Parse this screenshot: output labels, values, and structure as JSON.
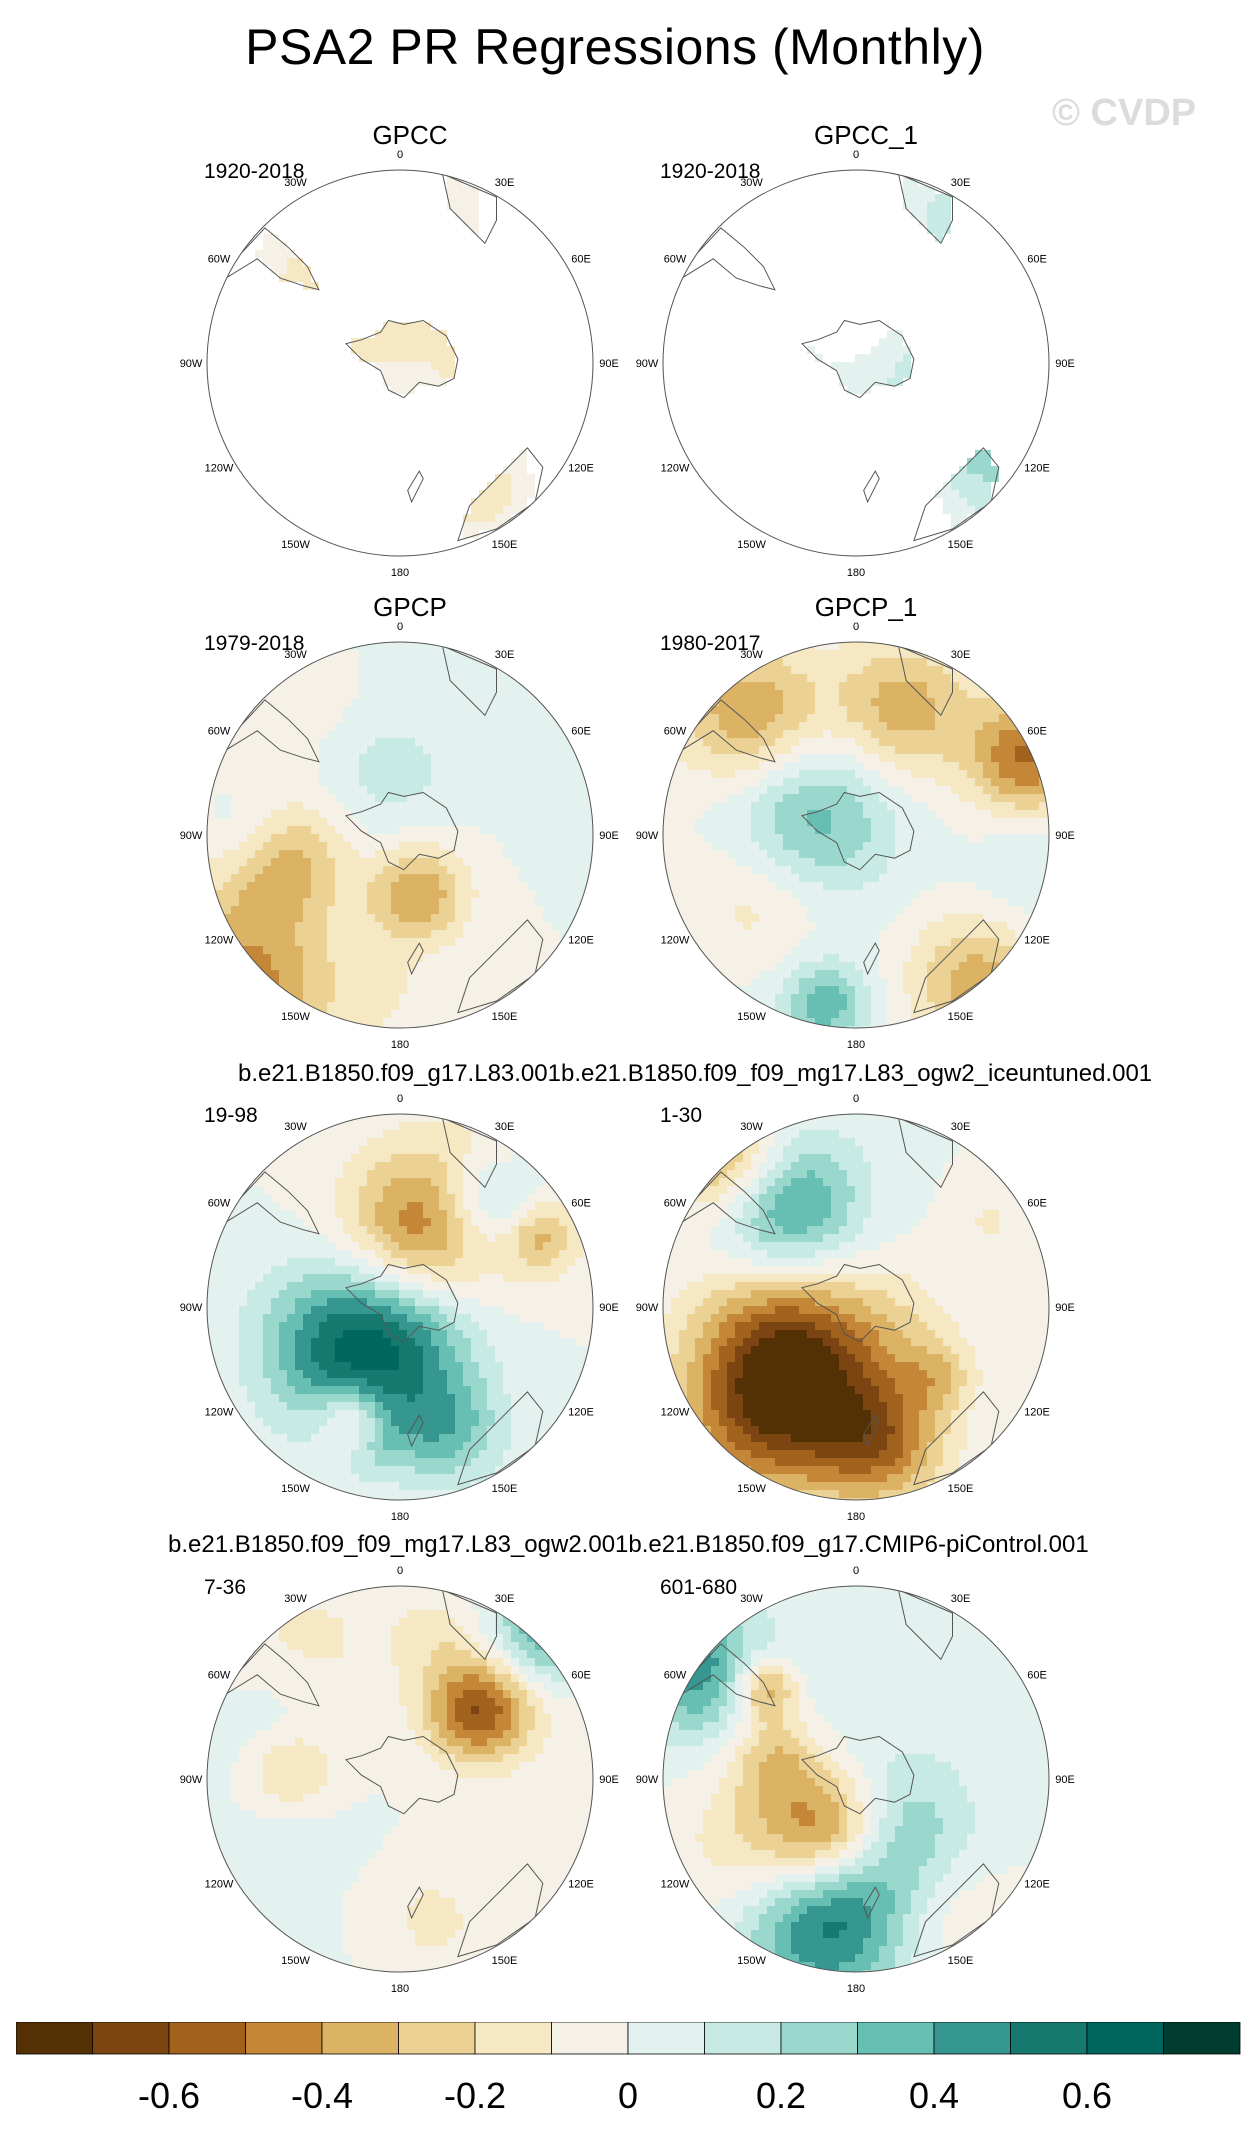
{
  "title": "PSA2 PR Regressions (Monthly)",
  "watermark": "© CVDP",
  "panels": [
    {
      "title": "GPCC",
      "period": "1920-2018",
      "coverage": "land",
      "seed": 3
    },
    {
      "title": "GPCC_1",
      "period": "1920-2018",
      "coverage": "land",
      "seed": 5
    },
    {
      "title": "GPCP",
      "period": "1979-2018",
      "coverage": "full",
      "seed": 7
    },
    {
      "title": "GPCP_1",
      "period": "1980-2017",
      "coverage": "full",
      "seed": 9
    },
    {
      "title": "",
      "period": "19-98",
      "coverage": "full",
      "seed": 11
    },
    {
      "title": "",
      "period": "1-30",
      "coverage": "full",
      "seed": 13
    },
    {
      "title": "",
      "period": "7-36",
      "coverage": "full",
      "seed": 17
    },
    {
      "title": "",
      "period": "601-680",
      "coverage": "full",
      "seed": 19
    }
  ],
  "row_titles": {
    "row3": "b.e21.B1850.f09_g17.L83.001b.e21.B1850.f09_f09_mg17.L83_ogw2_iceuntuned.001",
    "row4": "b.e21.B1850.f09_f09_mg17.L83_ogw2.001b.e21.B1850.f09_g17.CMIP6-piControl.001"
  },
  "longitude_ticks": [
    "0",
    "30E",
    "60E",
    "90E",
    "120E",
    "150E",
    "180",
    "150W",
    "120W",
    "90W",
    "60W",
    "30W"
  ],
  "colorbar": {
    "levels": [
      -0.8,
      -0.7,
      -0.6,
      -0.5,
      -0.4,
      -0.3,
      -0.2,
      -0.1,
      0,
      0.1,
      0.2,
      0.3,
      0.4,
      0.5,
      0.6,
      0.7,
      0.8
    ],
    "colors": [
      "#543005",
      "#7a4510",
      "#a0621c",
      "#c48637",
      "#dcb264",
      "#ebd193",
      "#f6e8c3",
      "#f5f1e6",
      "#e3f1ef",
      "#c7eae5",
      "#9ad8cd",
      "#67beb3",
      "#35978f",
      "#16796f",
      "#01665e",
      "#003c30"
    ],
    "labels": [
      "-0.6",
      "-0.4",
      "-0.2",
      "0",
      "0.2",
      "0.4",
      "0.6"
    ]
  }
}
